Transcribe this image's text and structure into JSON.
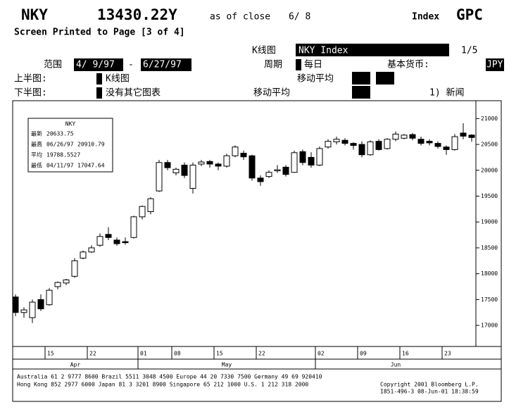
{
  "header": {
    "ticker": "NKY",
    "price": "13430.22Y",
    "as_of": "as of close",
    "date": "6/ 8",
    "kind": "Index",
    "function": "GPC",
    "printed": "Screen Printed to Page [3 of 4]",
    "chart_label": "K线图",
    "security": "NKY Index",
    "page": "1/5",
    "range_label": "范围",
    "range_start": "4/ 9/97",
    "range_dash": "-",
    "range_end": "6/27/97",
    "period_label": "周期",
    "period": "每日",
    "currency_label": "基本货币:",
    "currency": "JPY",
    "upper_label": "上半图:",
    "upper_value": "K线图",
    "upper_ma": "移动平均",
    "lower_label": "下半图:",
    "lower_value": "没有其它图表",
    "lower_ma": "移动平均",
    "news": "1) 新闻"
  },
  "chart_data": {
    "type": "candlestick",
    "categories": [
      null,
      null,
      null,
      null,
      "15",
      null,
      null,
      null,
      null,
      "22",
      null,
      null,
      null,
      null,
      null,
      "01",
      null,
      null,
      null,
      "08",
      null,
      null,
      null,
      null,
      "15",
      null,
      null,
      null,
      null,
      "22",
      null,
      null,
      null,
      null,
      null,
      null,
      "02",
      null,
      null,
      null,
      null,
      "09",
      null,
      null,
      null,
      null,
      "16",
      null,
      null,
      null,
      null,
      "23",
      null,
      null,
      null
    ],
    "months": [
      "Apr",
      "May",
      "Jun"
    ],
    "open": [
      17550,
      17250,
      17150,
      17500,
      17400,
      17750,
      17820,
      17950,
      18300,
      18420,
      18550,
      18760,
      18650,
      18620,
      18700,
      19100,
      19200,
      19600,
      20150,
      19950,
      20100,
      19650,
      20120,
      20170,
      20120,
      20080,
      20280,
      20330,
      20280,
      19850,
      19880,
      20000,
      20060,
      19960,
      20360,
      20250,
      20100,
      20450,
      20550,
      20580,
      20520,
      20500,
      20300,
      20560,
      20420,
      20600,
      20620,
      20690,
      20600,
      20560,
      20520,
      20450,
      20400,
      20720,
      20680
    ],
    "high": [
      17600,
      17350,
      17500,
      17600,
      17720,
      17850,
      17900,
      18300,
      18450,
      18550,
      18780,
      18900,
      18700,
      18700,
      19120,
      19320,
      19480,
      20200,
      20200,
      20050,
      20150,
      20150,
      20200,
      20200,
      20150,
      20320,
      20480,
      20380,
      20300,
      19900,
      20000,
      20100,
      20100,
      20380,
      20400,
      20350,
      20460,
      20600,
      20650,
      20620,
      20540,
      20560,
      20580,
      20600,
      20620,
      20750,
      20700,
      20720,
      20650,
      20600,
      20560,
      20480,
      20700,
      20910.79,
      20700
    ],
    "low": [
      17180,
      17150,
      17047.64,
      17280,
      17380,
      17700,
      17780,
      17920,
      18280,
      18400,
      18520,
      18650,
      18540,
      18560,
      18680,
      19050,
      19150,
      19580,
      20000,
      19900,
      19850,
      19550,
      20080,
      20050,
      20000,
      20050,
      20250,
      20200,
      19800,
      19700,
      19850,
      19950,
      19880,
      19950,
      20100,
      20050,
      20080,
      20420,
      20500,
      20480,
      20400,
      20250,
      20280,
      20380,
      20400,
      20560,
      20600,
      20580,
      20480,
      20480,
      20420,
      20300,
      20380,
      20600,
      20550
    ],
    "close": [
      17250,
      17300,
      17450,
      17320,
      17680,
      17830,
      17880,
      18250,
      18420,
      18500,
      18720,
      18700,
      18580,
      18600,
      19100,
      19300,
      19450,
      20150,
      20050,
      20020,
      19900,
      20100,
      20160,
      20120,
      20080,
      20280,
      20450,
      20260,
      19850,
      19780,
      19960,
      20010,
      19920,
      20340,
      20150,
      20100,
      20420,
      20560,
      20600,
      20520,
      20480,
      20300,
      20550,
      20400,
      20600,
      20700,
      20680,
      20620,
      20520,
      20530,
      20460,
      20400,
      20650,
      20660,
      20633.75
    ],
    "up_color": "#ffffff",
    "down_color": "#000000",
    "ylim": [
      16620,
      21250
    ],
    "yticks": [
      17000,
      17500,
      18000,
      18500,
      19000,
      19500,
      20000,
      20500,
      21000
    ],
    "legend": {
      "title": "NKY",
      "rows": [
        {
          "label": "最新",
          "value": 20633.75
        },
        {
          "label": "最高",
          "date": "06/26/97",
          "value": 20910.79
        },
        {
          "label": "平均",
          "value": 19788.5527
        },
        {
          "label": "最低",
          "date": "04/11/97",
          "value": 17047.64
        }
      ]
    }
  },
  "footer": {
    "line1": "Australia 61 2 9777 8600      Brazil 5511 3048 4500       Europe 44 20 7330 7500        Germany 49 69 920410",
    "line2": "Hong Kong 852 2977 6000   Japan 81 3 3201 8900   Singapore 65 212 1000   U.S. 1 212 318 2000",
    "copyright": "Copyright 2001 Bloomberg L.P.",
    "stamp": "I851-496-3 08-Jun-01 18:38:59"
  }
}
